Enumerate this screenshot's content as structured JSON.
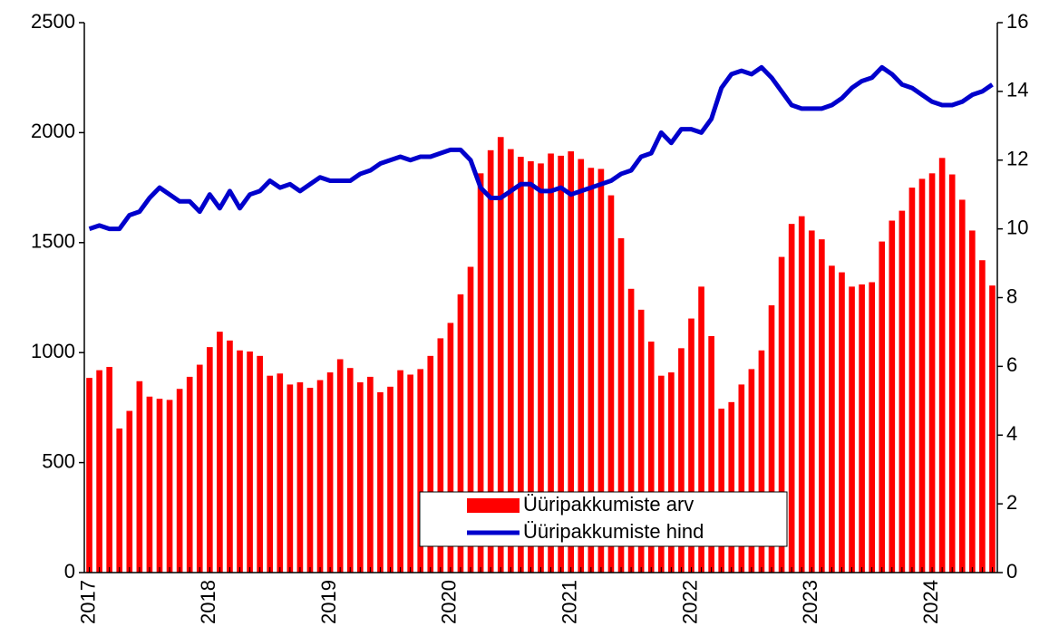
{
  "chart_data": {
    "type": "bar_line",
    "categories": [
      "2017",
      null,
      null,
      null,
      null,
      null,
      null,
      null,
      null,
      null,
      null,
      null,
      "2018",
      null,
      null,
      null,
      null,
      null,
      null,
      null,
      null,
      null,
      null,
      null,
      "2019",
      null,
      null,
      null,
      null,
      null,
      null,
      null,
      null,
      null,
      null,
      null,
      "2020",
      null,
      null,
      null,
      null,
      null,
      null,
      null,
      null,
      null,
      null,
      null,
      "2021",
      null,
      null,
      null,
      null,
      null,
      null,
      null,
      null,
      null,
      null,
      null,
      "2022",
      null,
      null,
      null,
      null,
      null,
      null,
      null,
      null,
      null,
      null,
      null,
      "2023",
      null,
      null,
      null,
      null,
      null,
      null,
      null,
      null,
      null,
      null,
      null,
      "2024",
      null,
      null,
      null,
      null,
      null,
      null
    ],
    "series": [
      {
        "name": "Üüripakkumiste arv",
        "type": "bar",
        "color": "#ff0000",
        "axis": "y",
        "values": [
          885,
          920,
          935,
          655,
          735,
          870,
          800,
          790,
          785,
          835,
          890,
          945,
          1025,
          1095,
          1055,
          1010,
          1005,
          985,
          895,
          905,
          855,
          865,
          840,
          875,
          910,
          970,
          930,
          865,
          890,
          820,
          845,
          920,
          900,
          925,
          985,
          1065,
          1135,
          1265,
          1390,
          1815,
          1920,
          1980,
          1925,
          1890,
          1870,
          1860,
          1905,
          1895,
          1915,
          1880,
          1840,
          1835,
          1715,
          1520,
          1290,
          1195,
          1050,
          895,
          910,
          1020,
          1155,
          1300,
          1075,
          745,
          775,
          855,
          925,
          1010,
          1215,
          1435,
          1585,
          1620,
          1555,
          1515,
          1395,
          1365,
          1300,
          1310,
          1320,
          1505,
          1600,
          1645,
          1750,
          1790,
          1815,
          1885,
          1810,
          1695,
          1555,
          1420,
          1305
        ]
      },
      {
        "name": "Üüripakkumiste hind",
        "type": "line",
        "color": "#0000cc",
        "axis": "y2",
        "values": [
          10.0,
          10.1,
          10.0,
          10.0,
          10.4,
          10.5,
          10.9,
          11.2,
          11.0,
          10.8,
          10.8,
          10.5,
          11.0,
          10.6,
          11.1,
          10.6,
          11.0,
          11.1,
          11.4,
          11.2,
          11.3,
          11.1,
          11.3,
          11.5,
          11.4,
          11.4,
          11.4,
          11.6,
          11.7,
          11.9,
          12.0,
          12.1,
          12.0,
          12.1,
          12.1,
          12.2,
          12.3,
          12.3,
          12.0,
          11.2,
          10.9,
          10.9,
          11.1,
          11.3,
          11.3,
          11.1,
          11.1,
          11.2,
          11.0,
          11.1,
          11.2,
          11.3,
          11.4,
          11.6,
          11.7,
          12.1,
          12.2,
          12.8,
          12.5,
          12.9,
          12.9,
          12.8,
          13.2,
          14.1,
          14.5,
          14.6,
          14.5,
          14.7,
          14.4,
          14.0,
          13.6,
          13.5,
          13.5,
          13.5,
          13.6,
          13.8,
          14.1,
          14.3,
          14.4,
          14.7,
          14.5,
          14.2,
          14.1,
          13.9,
          13.7,
          13.6,
          13.6,
          13.7,
          13.9,
          14.0,
          14.2
        ]
      }
    ],
    "ylim": [
      0,
      2500
    ],
    "yticks": [
      0,
      500,
      1000,
      1500,
      2000,
      2500
    ],
    "y2lim": [
      0,
      16
    ],
    "y2ticks": [
      0,
      2,
      4,
      6,
      8,
      10,
      12,
      14,
      16
    ],
    "grid": false,
    "legend": "lower center"
  }
}
